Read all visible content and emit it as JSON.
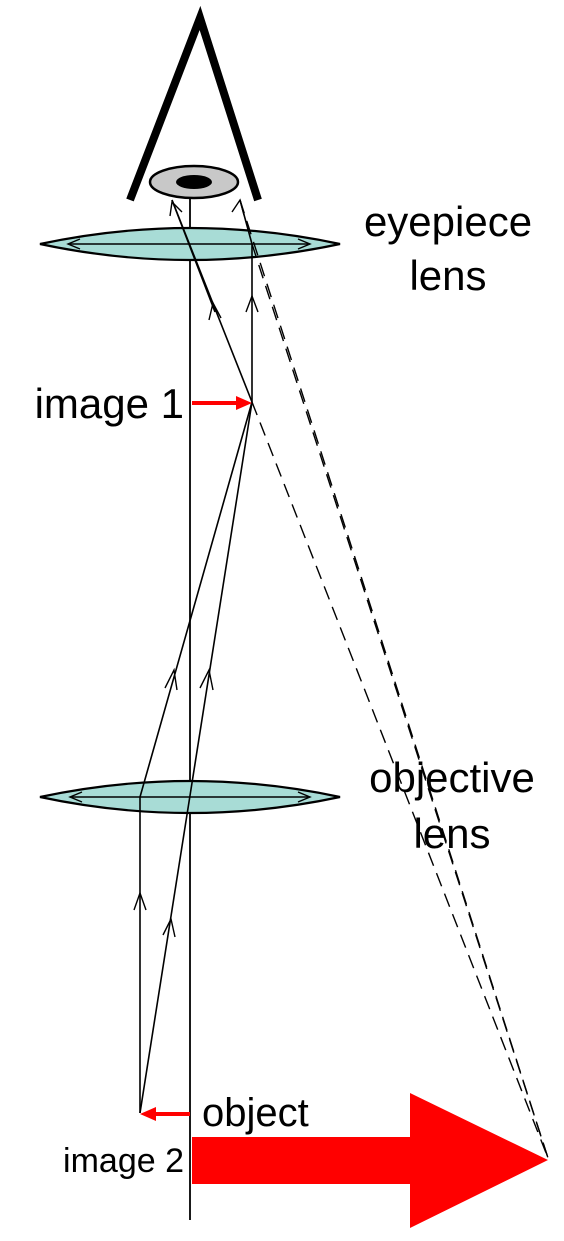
{
  "labels": {
    "eyepiece_line1": "eyepiece",
    "eyepiece_line2": "lens",
    "image1": "image 1",
    "objective_line1": "objective",
    "objective_line2": "lens",
    "object": "object",
    "image2": "image 2"
  },
  "colors": {
    "lens_fill": "#a8dcd6",
    "arrow_red": "#ff0000",
    "eye_iris": "#c8c8c8",
    "eye_pupil": "#000000",
    "line": "#000000"
  }
}
